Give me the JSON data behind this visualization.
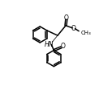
{
  "bg_color": "#ffffff",
  "line_color": "#000000",
  "lw": 1.1,
  "fs": 5.5,
  "figsize": [
    1.22,
    1.13
  ],
  "dpi": 100,
  "xlim": [
    0,
    122
  ],
  "ylim": [
    0,
    113
  ]
}
